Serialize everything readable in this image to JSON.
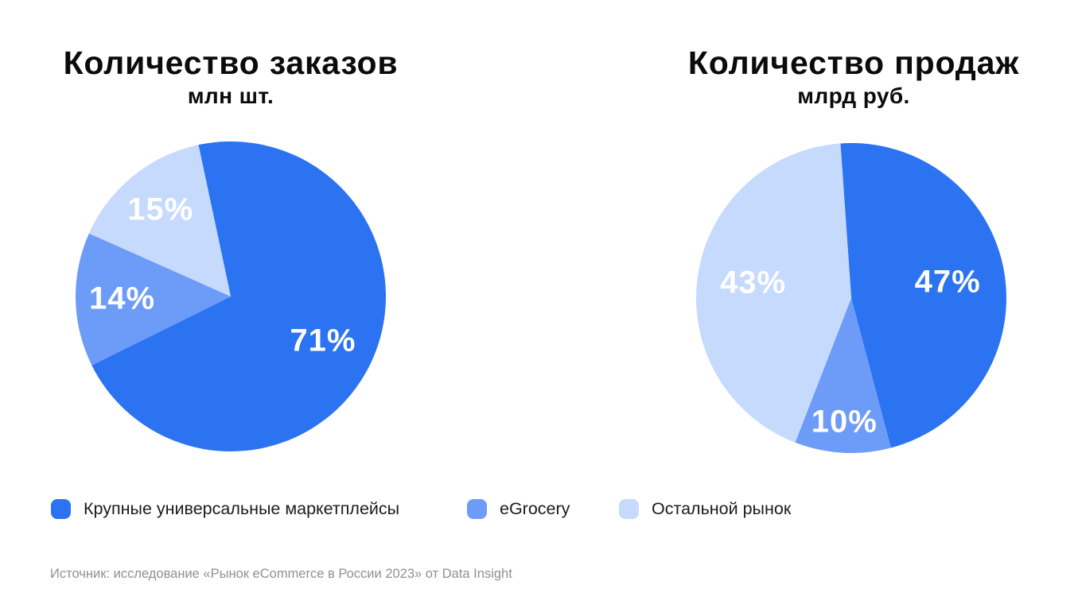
{
  "charts_header": {
    "orders_title": "Количество заказов",
    "orders_subtitle": "млн шт.",
    "sales_title": "Количество продаж",
    "sales_subtitle": "млрд руб."
  },
  "chart_data": [
    {
      "type": "pie",
      "title": "Количество заказов",
      "subtitle": "млн шт.",
      "categories": [
        "Крупные универсальные маркетплейсы",
        "eGrocery",
        "Остальной рынок"
      ],
      "values": [
        71,
        14,
        15
      ],
      "value_labels": [
        "71%",
        "14%",
        "15%"
      ],
      "start_angle_deg": -12,
      "legend_position": "bottom-shared"
    },
    {
      "type": "pie",
      "title": "Количество продаж",
      "subtitle": "млрд руб.",
      "categories": [
        "Крупные универсальные маркетплейсы",
        "eGrocery",
        "Остальной рынок"
      ],
      "values": [
        47,
        10,
        43
      ],
      "value_labels": [
        "47%",
        "10%",
        "43%"
      ],
      "start_angle_deg": -4,
      "legend_position": "bottom-shared"
    }
  ],
  "legend": {
    "items": [
      {
        "key": "marketplaces",
        "label": "Крупные универсальные маркетплейсы",
        "color": "#2C73F2"
      },
      {
        "key": "egrocery",
        "label": "eGrocery",
        "color": "#6D9BF8"
      },
      {
        "key": "rest-market",
        "label": "Остальной рынок",
        "color": "#C5DAFD"
      }
    ]
  },
  "source": {
    "text": "Источник: исследование «Рынок eCommerce в России 2023» от Data Insight"
  },
  "colors": {
    "background": "#FFFFFF",
    "title_text": "#0B0B0C",
    "legend_text": "#1B1B1E",
    "slice_label_text": "#FFFFFF",
    "source_text": "#8F9094",
    "slice_dark": "#2C73F2",
    "slice_medium": "#6D9BF8",
    "slice_light": "#C5DAFD"
  }
}
